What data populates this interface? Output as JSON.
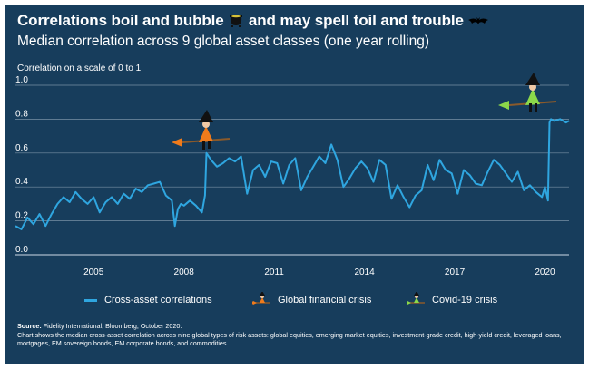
{
  "title_parts": {
    "part1": "Correlations boil and bubble",
    "part2": "and may spell toil and trouble"
  },
  "subtitle": "Median correlation across 9 global asset classes (one year rolling)",
  "legend": {
    "series": "Cross-asset correlations",
    "gfc": "Global financial crisis",
    "covid": "Covid-19 crisis"
  },
  "source": {
    "label": "Source:",
    "text": "Fidelity International, Bloomberg, October 2020.",
    "note": "Chart shows the median cross-asset correlation across nine global types of risk assets: global equities, emerging market equities, investment-grade credit, high-yield credit, leveraged loans, mortgages, EM sovereign bonds, EM corporate bonds, and commodities."
  },
  "colors": {
    "background": "#173d5c",
    "line": "#2fa6e0",
    "grid": "#b8c8d6",
    "text": "#ffffff",
    "witch_orange": "#f07b1b",
    "witch_green": "#8cd84a"
  },
  "icons": [
    "cauldron-icon",
    "bat-icon",
    "witch-icon"
  ],
  "chart_data": {
    "type": "line",
    "title": "Correlations boil and bubble and may spell toil and trouble",
    "subtitle": "Median correlation across 9 global asset classes (one year rolling)",
    "ylabel": "Correlation on a scale of 0 to 1",
    "xlabel": "",
    "ylim": [
      0,
      1
    ],
    "xlim": [
      2002.4,
      2020.8
    ],
    "yticks": [
      "0.0",
      "0.2",
      "0.4",
      "0.6",
      "0.8",
      "1.0"
    ],
    "xticks": [
      "2005",
      "2008",
      "2011",
      "2014",
      "2017",
      "2020"
    ],
    "grid": true,
    "legend_position": "bottom",
    "series": [
      {
        "name": "Cross-asset correlations",
        "x": [
          2002.4,
          2002.6,
          2002.8,
          2003.0,
          2003.2,
          2003.4,
          2003.6,
          2003.8,
          2004.0,
          2004.2,
          2004.4,
          2004.6,
          2004.8,
          2005.0,
          2005.2,
          2005.4,
          2005.6,
          2005.8,
          2006.0,
          2006.2,
          2006.4,
          2006.6,
          2006.8,
          2007.0,
          2007.2,
          2007.4,
          2007.6,
          2007.7,
          2007.8,
          2007.9,
          2008.0,
          2008.2,
          2008.4,
          2008.6,
          2008.7,
          2008.75,
          2008.9,
          2009.1,
          2009.3,
          2009.5,
          2009.7,
          2009.9,
          2010.1,
          2010.3,
          2010.5,
          2010.7,
          2010.9,
          2011.1,
          2011.3,
          2011.5,
          2011.7,
          2011.9,
          2012.1,
          2012.3,
          2012.5,
          2012.7,
          2012.9,
          2013.1,
          2013.3,
          2013.5,
          2013.7,
          2013.9,
          2014.1,
          2014.3,
          2014.5,
          2014.7,
          2014.9,
          2015.1,
          2015.3,
          2015.5,
          2015.7,
          2015.9,
          2016.1,
          2016.3,
          2016.5,
          2016.7,
          2016.9,
          2017.1,
          2017.3,
          2017.5,
          2017.7,
          2017.9,
          2018.1,
          2018.3,
          2018.5,
          2018.7,
          2018.9,
          2019.1,
          2019.3,
          2019.5,
          2019.7,
          2019.9,
          2020.0,
          2020.1,
          2020.15,
          2020.2,
          2020.3,
          2020.5,
          2020.7,
          2020.8
        ],
        "values": [
          0.17,
          0.15,
          0.22,
          0.18,
          0.24,
          0.17,
          0.24,
          0.3,
          0.34,
          0.31,
          0.37,
          0.33,
          0.3,
          0.34,
          0.25,
          0.31,
          0.34,
          0.3,
          0.36,
          0.33,
          0.39,
          0.37,
          0.41,
          0.42,
          0.43,
          0.35,
          0.32,
          0.17,
          0.27,
          0.3,
          0.29,
          0.32,
          0.29,
          0.25,
          0.35,
          0.6,
          0.56,
          0.52,
          0.54,
          0.57,
          0.55,
          0.58,
          0.36,
          0.5,
          0.53,
          0.46,
          0.55,
          0.54,
          0.42,
          0.53,
          0.57,
          0.38,
          0.46,
          0.52,
          0.58,
          0.54,
          0.65,
          0.56,
          0.4,
          0.45,
          0.51,
          0.55,
          0.51,
          0.43,
          0.56,
          0.53,
          0.33,
          0.41,
          0.34,
          0.28,
          0.35,
          0.38,
          0.53,
          0.44,
          0.56,
          0.5,
          0.48,
          0.36,
          0.5,
          0.47,
          0.42,
          0.41,
          0.49,
          0.56,
          0.53,
          0.48,
          0.43,
          0.49,
          0.38,
          0.41,
          0.37,
          0.34,
          0.4,
          0.32,
          0.78,
          0.8,
          0.79,
          0.8,
          0.78,
          0.79
        ]
      }
    ],
    "annotations": [
      "Global financial crisis",
      "Covid-19 crisis"
    ]
  }
}
